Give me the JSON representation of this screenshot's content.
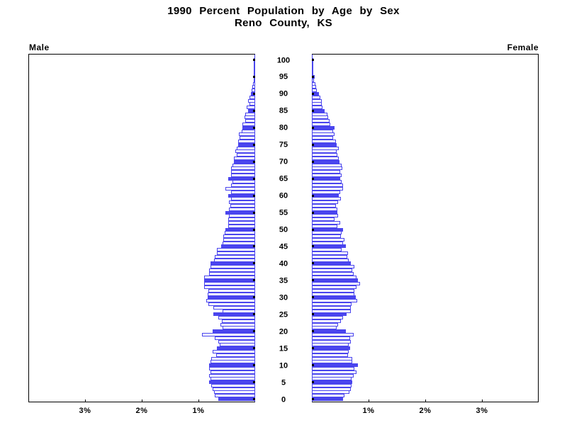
{
  "title": {
    "line1": "1990 Percent Population by Age by Sex",
    "line2": "Reno County, KS"
  },
  "side_labels": {
    "male": "Male",
    "female": "Female"
  },
  "colors": {
    "bar_blue": "#4a45ee",
    "axis_black": "#000000",
    "background": "#ffffff"
  },
  "chart_data": {
    "type": "bar",
    "subtype": "population-pyramid",
    "title": "1990 Percent Population by Age by Sex",
    "subtitle": "Reno County, KS",
    "unit": "percent of total population per single year of age",
    "age_min": 0,
    "age_max": 100,
    "solid_bar_every": 5,
    "age_tick_labels": [
      0,
      5,
      10,
      15,
      20,
      25,
      30,
      35,
      40,
      45,
      50,
      55,
      60,
      65,
      70,
      75,
      80,
      85,
      90,
      95,
      100
    ],
    "pct_tick_values": [
      1,
      2,
      3
    ],
    "pct_tick_labels": [
      "1%",
      "2%",
      "3%"
    ],
    "xlim_each_side": [
      0,
      4
    ],
    "grid": false,
    "legend": "none",
    "series": [
      {
        "name": "Male",
        "side": "left",
        "values": [
          0.65,
          0.71,
          0.73,
          0.75,
          0.77,
          0.81,
          0.79,
          0.81,
          0.79,
          0.81,
          0.81,
          0.79,
          0.77,
          0.69,
          0.75,
          0.67,
          0.62,
          0.65,
          0.71,
          0.94,
          0.75,
          0.58,
          0.61,
          0.59,
          0.65,
          0.74,
          0.58,
          0.74,
          0.82,
          0.86,
          0.84,
          0.84,
          0.83,
          0.9,
          0.9,
          0.9,
          0.9,
          0.81,
          0.81,
          0.79,
          0.79,
          0.73,
          0.71,
          0.67,
          0.67,
          0.6,
          0.58,
          0.56,
          0.56,
          0.54,
          0.53,
          0.48,
          0.47,
          0.48,
          0.46,
          0.52,
          0.46,
          0.44,
          0.46,
          0.42,
          0.48,
          0.42,
          0.52,
          0.42,
          0.4,
          0.48,
          0.42,
          0.42,
          0.42,
          0.4,
          0.37,
          0.38,
          0.33,
          0.35,
          0.33,
          0.3,
          0.3,
          0.27,
          0.29,
          0.24,
          0.22,
          0.23,
          0.18,
          0.19,
          0.17,
          0.13,
          0.15,
          0.1,
          0.12,
          0.1,
          0.08,
          0.06,
          0.05,
          0.04,
          0.03,
          0.03,
          0.02,
          0.02,
          0.01,
          0.01,
          0.01
        ]
      },
      {
        "name": "Female",
        "side": "right",
        "values": [
          0.55,
          0.58,
          0.66,
          0.69,
          0.7,
          0.71,
          0.7,
          0.74,
          0.79,
          0.75,
          0.81,
          0.71,
          0.71,
          0.64,
          0.65,
          0.67,
          0.65,
          0.69,
          0.68,
          0.74,
          0.6,
          0.44,
          0.46,
          0.51,
          0.55,
          0.61,
          0.69,
          0.69,
          0.7,
          0.8,
          0.77,
          0.75,
          0.75,
          0.79,
          0.85,
          0.81,
          0.79,
          0.74,
          0.71,
          0.75,
          0.69,
          0.65,
          0.62,
          0.64,
          0.53,
          0.6,
          0.55,
          0.58,
          0.51,
          0.52,
          0.55,
          0.45,
          0.5,
          0.4,
          0.46,
          0.45,
          0.45,
          0.43,
          0.46,
          0.51,
          0.48,
          0.5,
          0.55,
          0.55,
          0.52,
          0.5,
          0.52,
          0.5,
          0.54,
          0.52,
          0.49,
          0.48,
          0.45,
          0.44,
          0.48,
          0.44,
          0.42,
          0.38,
          0.4,
          0.38,
          0.4,
          0.33,
          0.31,
          0.29,
          0.27,
          0.23,
          0.19,
          0.18,
          0.17,
          0.15,
          0.13,
          0.09,
          0.08,
          0.06,
          0.04,
          0.05,
          0.03,
          0.03,
          0.02,
          0.01,
          0.02
        ]
      }
    ]
  }
}
